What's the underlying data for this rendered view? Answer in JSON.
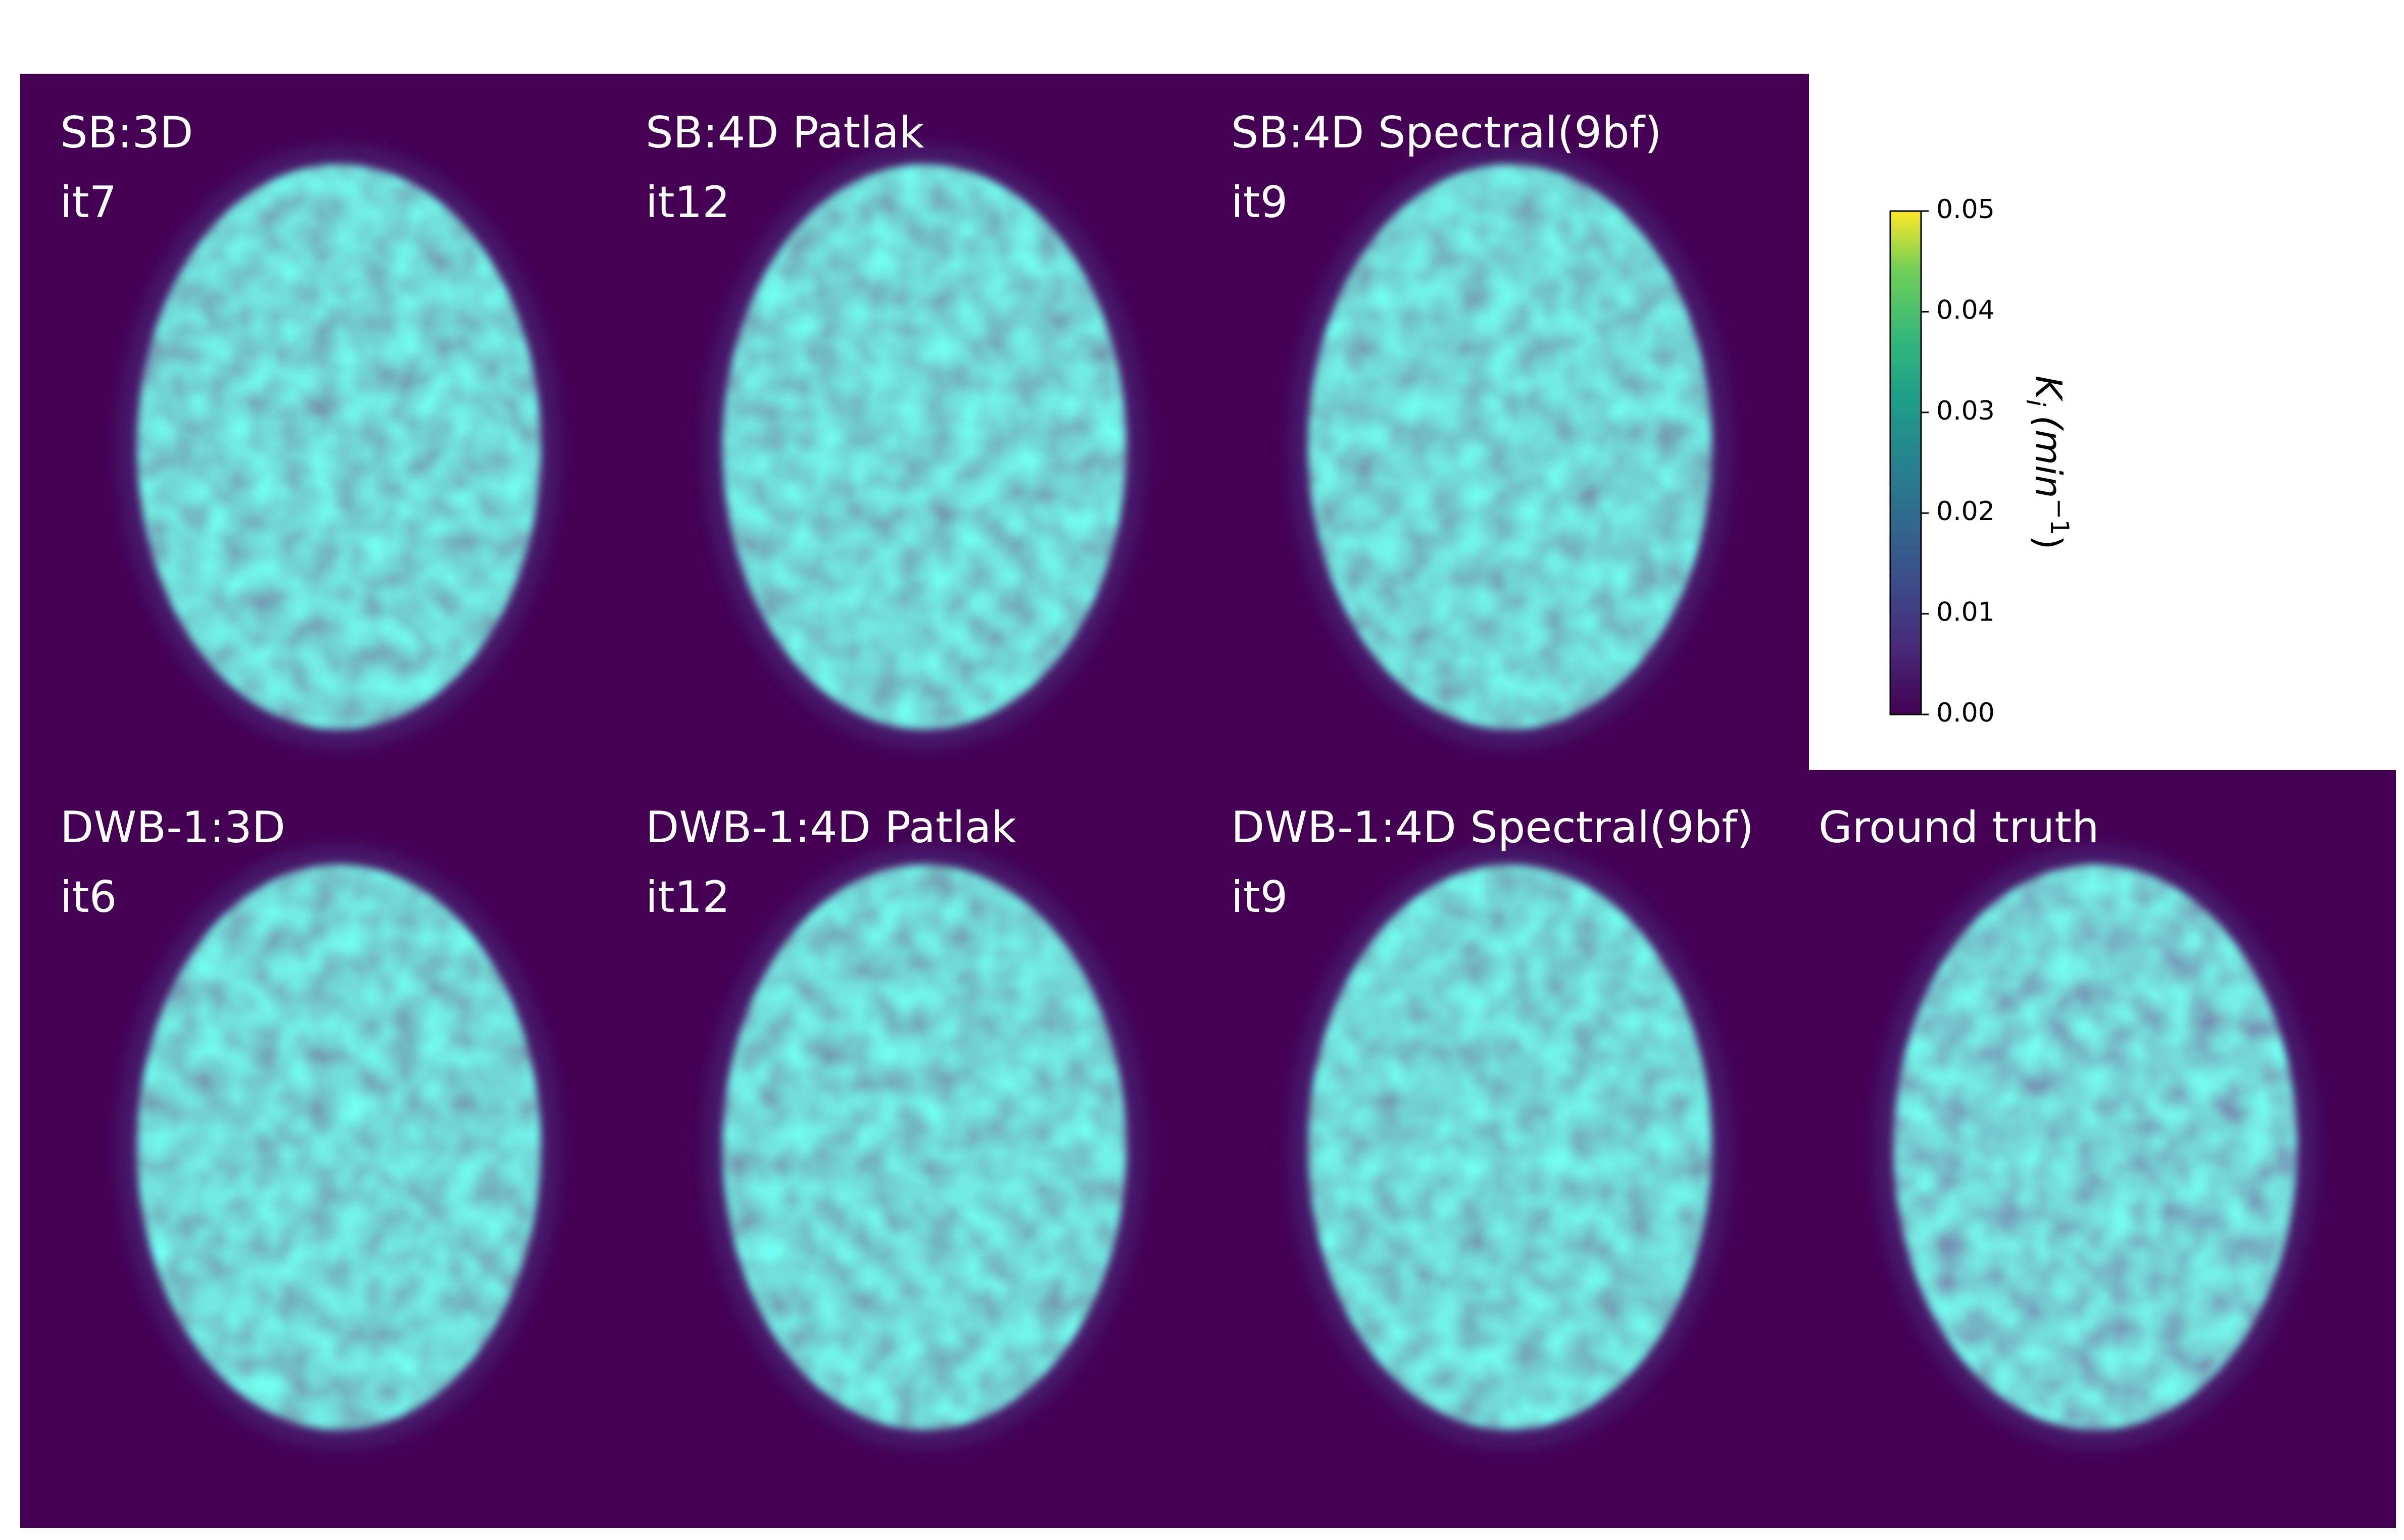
{
  "panels": [
    {
      "title": "SB:3D",
      "iteration": "it7"
    },
    {
      "title": "SB:4D Patlak",
      "iteration": "it12"
    },
    {
      "title": "SB:4D Spectral(9bf)",
      "iteration": "it9"
    },
    {
      "title": "DWB-1:3D",
      "iteration": "it6"
    },
    {
      "title": "DWB-1:4D Patlak",
      "iteration": "it12"
    },
    {
      "title": "DWB-1:4D Spectral(9bf)",
      "iteration": "it9"
    },
    {
      "title": "Ground truth"
    }
  ],
  "colorbar": {
    "range": [
      0,
      0.05
    ],
    "ticks": [
      {
        "value": 0,
        "label": "0.00"
      },
      {
        "value": 0.01,
        "label": "0.01"
      },
      {
        "value": 0.02,
        "label": "0.02"
      },
      {
        "value": 0.03,
        "label": "0.03"
      },
      {
        "value": 0.04,
        "label": "0.04"
      },
      {
        "value": 0.05,
        "label": "0.05"
      }
    ],
    "label": {
      "symbol": "K",
      "subscript": "i",
      "unit": "(min",
      "exponent": "−1",
      "close": ")"
    }
  }
}
